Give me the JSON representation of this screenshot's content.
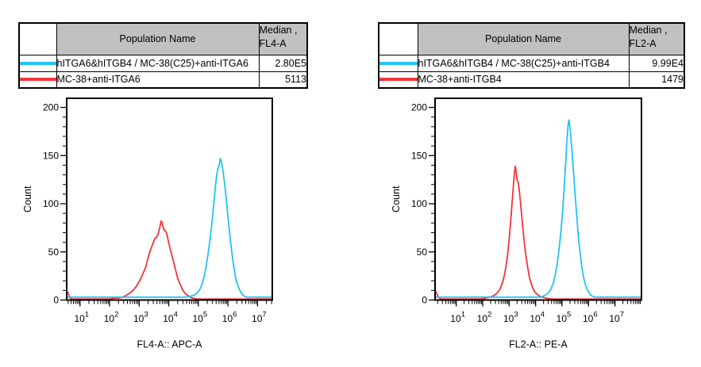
{
  "colors": {
    "cyan": "#22c3f4",
    "red": "#f4333a",
    "table_header_bg": "#c1c1c1",
    "axis": "#000000"
  },
  "tables": [
    {
      "header": {
        "population": "Population Name",
        "median_line1": "Median ,",
        "median_line2": "FL4-A"
      },
      "rows": [
        {
          "color": "cyan",
          "name": "hITGA6&hITGB4 / MC-38(C25)+anti-ITGA6",
          "median": "2.80E5"
        },
        {
          "color": "red",
          "name": "MC-38+anti-ITGA6",
          "median": "5113"
        }
      ]
    },
    {
      "header": {
        "population": "Population Name",
        "median_line1": "Median ,",
        "median_line2": "FL2-A"
      },
      "rows": [
        {
          "color": "cyan",
          "name": "hITGA6&hITGB4 / MC-38(C25)+anti-ITGB4",
          "median": "9.99E4"
        },
        {
          "color": "red",
          "name": "MC-38+anti-ITGB4",
          "median": "1479"
        }
      ]
    }
  ],
  "chart_data": [
    {
      "type": "line",
      "title": "",
      "xlabel": "FL4-A:: APC-A",
      "ylabel": "Count",
      "x_scale": "log",
      "x_log_range": [
        0.55,
        7.5
      ],
      "ylim": [
        0,
        209.5
      ],
      "y_ticks": [
        0,
        50,
        100,
        150,
        200
      ],
      "x_tick_base": "10",
      "x_tick_exponents": [
        1,
        2,
        3,
        4,
        5,
        6,
        7
      ],
      "grid": false,
      "legend": "table-above",
      "series": [
        {
          "name": "hITGA6&hITGB4 / MC-38(C25)+anti-ITGA6",
          "color_key": "cyan",
          "median": "2.80E5",
          "points": [
            [
              0.55,
              1
            ],
            [
              1.3,
              1
            ],
            [
              2.1,
              1
            ],
            [
              2.9,
              1
            ],
            [
              3.7,
              1
            ],
            [
              4.3,
              1
            ],
            [
              4.55,
              1
            ],
            [
              4.72,
              2
            ],
            [
              4.85,
              3
            ],
            [
              4.95,
              5
            ],
            [
              5.05,
              9
            ],
            [
              5.13,
              15
            ],
            [
              5.2,
              23
            ],
            [
              5.27,
              34
            ],
            [
              5.33,
              46
            ],
            [
              5.39,
              60
            ],
            [
              5.45,
              76
            ],
            [
              5.5,
              91
            ],
            [
              5.55,
              107
            ],
            [
              5.59,
              119
            ],
            [
              5.62,
              127
            ],
            [
              5.65,
              133
            ],
            [
              5.68,
              136
            ],
            [
              5.71,
              139
            ],
            [
              5.74,
              145
            ],
            [
              5.77,
              143
            ],
            [
              5.8,
              138
            ],
            [
              5.84,
              131
            ],
            [
              5.88,
              121
            ],
            [
              5.92,
              110
            ],
            [
              5.96,
              98
            ],
            [
              6.0,
              85
            ],
            [
              6.05,
              70
            ],
            [
              6.1,
              56
            ],
            [
              6.15,
              43
            ],
            [
              6.2,
              32
            ],
            [
              6.25,
              23
            ],
            [
              6.3,
              16
            ],
            [
              6.36,
              11
            ],
            [
              6.42,
              7
            ],
            [
              6.48,
              4
            ],
            [
              6.55,
              2
            ],
            [
              6.65,
              1
            ],
            [
              6.9,
              1
            ],
            [
              7.2,
              1
            ],
            [
              7.5,
              1
            ]
          ]
        },
        {
          "name": "MC-38+anti-ITGA6",
          "color_key": "red",
          "median": "5113",
          "points": [
            [
              0.55,
              9
            ],
            [
              0.6,
              6
            ],
            [
              0.65,
              2
            ],
            [
              0.72,
              0
            ],
            [
              1.2,
              0
            ],
            [
              1.7,
              0
            ],
            [
              2.0,
              0
            ],
            [
              2.15,
              1
            ],
            [
              2.3,
              1
            ],
            [
              2.42,
              2
            ],
            [
              2.52,
              3
            ],
            [
              2.62,
              5
            ],
            [
              2.72,
              7
            ],
            [
              2.82,
              10
            ],
            [
              2.9,
              13
            ],
            [
              2.98,
              17
            ],
            [
              3.05,
              21
            ],
            [
              3.12,
              26
            ],
            [
              3.18,
              30
            ],
            [
              3.24,
              35
            ],
            [
              3.3,
              43
            ],
            [
              3.36,
              49
            ],
            [
              3.42,
              54
            ],
            [
              3.48,
              59
            ],
            [
              3.53,
              63
            ],
            [
              3.58,
              64
            ],
            [
              3.62,
              66
            ],
            [
              3.66,
              70
            ],
            [
              3.7,
              75
            ],
            [
              3.74,
              81
            ],
            [
              3.77,
              80
            ],
            [
              3.8,
              76
            ],
            [
              3.84,
              72
            ],
            [
              3.88,
              71
            ],
            [
              3.92,
              69
            ],
            [
              3.96,
              64
            ],
            [
              4.0,
              58
            ],
            [
              4.05,
              52
            ],
            [
              4.1,
              46
            ],
            [
              4.15,
              40
            ],
            [
              4.2,
              34
            ],
            [
              4.25,
              28
            ],
            [
              4.3,
              22
            ],
            [
              4.36,
              17
            ],
            [
              4.42,
              13
            ],
            [
              4.48,
              9
            ],
            [
              4.55,
              6
            ],
            [
              4.63,
              4
            ],
            [
              4.72,
              2
            ],
            [
              4.82,
              1
            ],
            [
              4.95,
              0
            ],
            [
              5.3,
              0
            ],
            [
              5.8,
              0
            ],
            [
              6.3,
              0
            ],
            [
              6.8,
              0
            ],
            [
              7.5,
              0
            ]
          ]
        }
      ]
    },
    {
      "type": "line",
      "title": "",
      "xlabel": "FL2-A:: PE-A",
      "ylabel": "Count",
      "x_scale": "log",
      "x_log_range": [
        0.2,
        8.0
      ],
      "ylim": [
        0,
        209.5
      ],
      "y_ticks": [
        0,
        50,
        100,
        150,
        200
      ],
      "x_tick_base": "10",
      "x_tick_exponents": [
        1,
        2,
        3,
        4,
        5,
        6,
        7
      ],
      "grid": false,
      "legend": "table-above",
      "series": [
        {
          "name": "hITGA6&hITGB4 / MC-38(C25)+anti-ITGB4",
          "color_key": "cyan",
          "median": "9.99E4",
          "points": [
            [
              0.2,
              1
            ],
            [
              1.0,
              1
            ],
            [
              1.9,
              1
            ],
            [
              2.8,
              1
            ],
            [
              3.6,
              1
            ],
            [
              4.0,
              1
            ],
            [
              4.2,
              1
            ],
            [
              4.35,
              3
            ],
            [
              4.47,
              5
            ],
            [
              4.57,
              9
            ],
            [
              4.66,
              15
            ],
            [
              4.74,
              24
            ],
            [
              4.81,
              35
            ],
            [
              4.88,
              49
            ],
            [
              4.94,
              65
            ],
            [
              5.0,
              83
            ],
            [
              5.05,
              102
            ],
            [
              5.1,
              124
            ],
            [
              5.14,
              143
            ],
            [
              5.17,
              158
            ],
            [
              5.2,
              170
            ],
            [
              5.23,
              181
            ],
            [
              5.26,
              185
            ],
            [
              5.29,
              179
            ],
            [
              5.33,
              169
            ],
            [
              5.37,
              155
            ],
            [
              5.41,
              139
            ],
            [
              5.46,
              120
            ],
            [
              5.51,
              101
            ],
            [
              5.56,
              83
            ],
            [
              5.61,
              66
            ],
            [
              5.66,
              52
            ],
            [
              5.71,
              40
            ],
            [
              5.76,
              30
            ],
            [
              5.81,
              22
            ],
            [
              5.87,
              15
            ],
            [
              5.93,
              10
            ],
            [
              5.99,
              7
            ],
            [
              6.06,
              4
            ],
            [
              6.14,
              2
            ],
            [
              6.24,
              1
            ],
            [
              6.5,
              1
            ],
            [
              7.2,
              1
            ],
            [
              8.0,
              1
            ]
          ]
        },
        {
          "name": "MC-38+anti-ITGB4",
          "color_key": "red",
          "median": "1479",
          "points": [
            [
              0.2,
              9
            ],
            [
              0.26,
              6
            ],
            [
              0.32,
              2
            ],
            [
              0.42,
              0
            ],
            [
              1.0,
              0
            ],
            [
              1.6,
              0
            ],
            [
              1.95,
              0
            ],
            [
              2.1,
              1
            ],
            [
              2.25,
              2
            ],
            [
              2.38,
              3
            ],
            [
              2.5,
              5
            ],
            [
              2.6,
              8
            ],
            [
              2.68,
              12
            ],
            [
              2.76,
              18
            ],
            [
              2.83,
              26
            ],
            [
              2.89,
              36
            ],
            [
              2.95,
              48
            ],
            [
              3.0,
              62
            ],
            [
              3.05,
              78
            ],
            [
              3.09,
              92
            ],
            [
              3.13,
              107
            ],
            [
              3.17,
              121
            ],
            [
              3.2,
              131
            ],
            [
              3.23,
              138
            ],
            [
              3.26,
              133
            ],
            [
              3.3,
              124
            ],
            [
              3.34,
              121
            ],
            [
              3.38,
              114
            ],
            [
              3.42,
              103
            ],
            [
              3.46,
              91
            ],
            [
              3.5,
              79
            ],
            [
              3.55,
              65
            ],
            [
              3.6,
              52
            ],
            [
              3.65,
              42
            ],
            [
              3.7,
              33
            ],
            [
              3.75,
              25
            ],
            [
              3.8,
              19
            ],
            [
              3.86,
              14
            ],
            [
              3.92,
              10
            ],
            [
              3.98,
              7
            ],
            [
              4.06,
              5
            ],
            [
              4.15,
              3
            ],
            [
              4.25,
              2
            ],
            [
              4.4,
              1
            ],
            [
              4.6,
              0
            ],
            [
              5.2,
              0
            ],
            [
              6.0,
              0
            ],
            [
              7.0,
              0
            ],
            [
              8.0,
              0
            ]
          ]
        }
      ]
    }
  ]
}
